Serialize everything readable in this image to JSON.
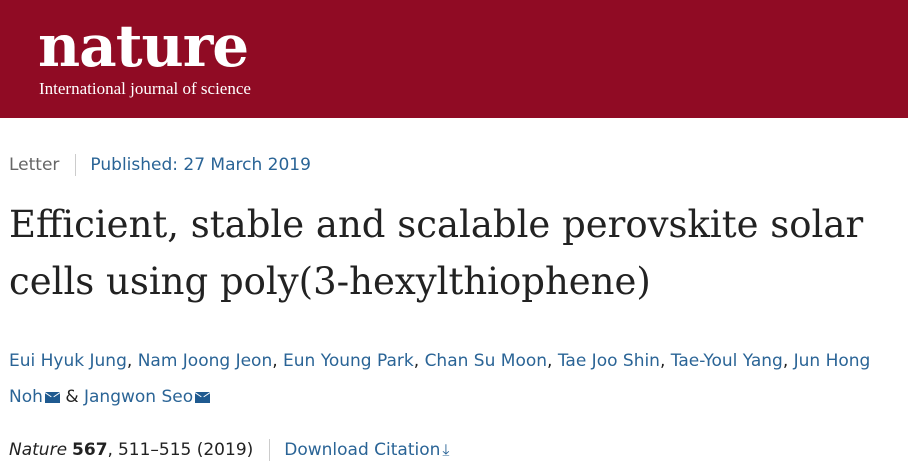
{
  "header": {
    "logo": "nature",
    "tagline": "International journal of science",
    "brand_color": "#900b24"
  },
  "article": {
    "type": "Letter",
    "published": "Published: 27 March 2019",
    "title": "Efficient, stable and scalable perovskite solar cells using poly(3-hexylthiophene)",
    "authors": [
      {
        "name": "Eui Hyuk Jung"
      },
      {
        "name": "Nam Joong Jeon"
      },
      {
        "name": "Eun Young Park"
      },
      {
        "name": "Chan Su Moon"
      },
      {
        "name": "Tae Joo Shin"
      },
      {
        "name": "Tae-Youl Yang"
      },
      {
        "name": "Jun Hong Noh",
        "icon": "mail-icon"
      },
      {
        "name": "Jangwon Seo",
        "icon": "mail-icon"
      }
    ],
    "author_separator": ",",
    "author_last_joiner": "&",
    "citation": {
      "journal": "Nature",
      "volume": "567",
      "pages": "511–515 (2019)",
      "download_label": "Download Citation",
      "download_icon": "download-arrow-icon"
    },
    "link_color": "#2a6496"
  }
}
